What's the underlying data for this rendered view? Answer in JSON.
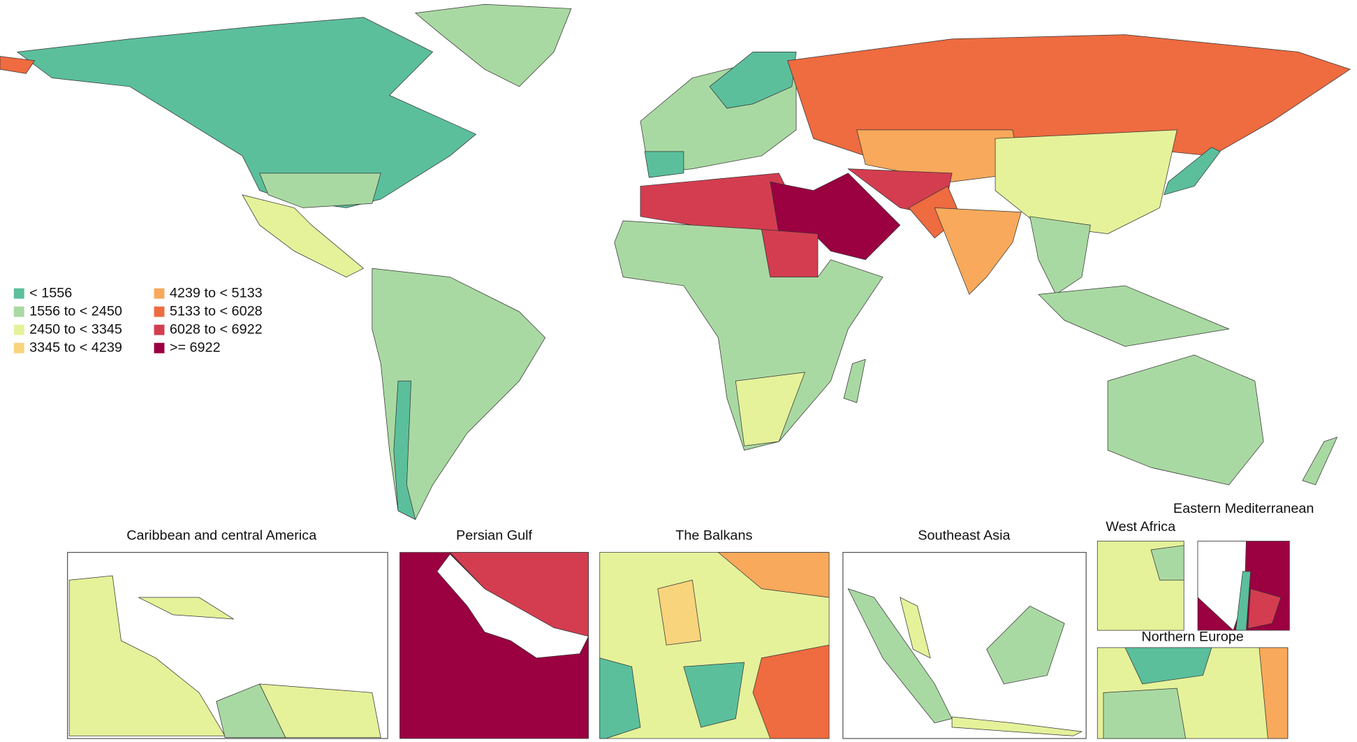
{
  "legend": {
    "items": [
      {
        "label": "< 1556",
        "color": "#5bbf9c"
      },
      {
        "label": "1556 to < 2450",
        "color": "#a9d9a2"
      },
      {
        "label": "2450 to < 3345",
        "color": "#e5f29a"
      },
      {
        "label": "3345 to < 4239",
        "color": "#f8d47c"
      },
      {
        "label": "4239 to < 5133",
        "color": "#f8a95b"
      },
      {
        "label": "5133 to < 6028",
        "color": "#ef6b40"
      },
      {
        "label": "6028 to < 6922",
        "color": "#d43d50"
      },
      {
        "label": ">= 6922",
        "color": "#9b0041"
      }
    ]
  },
  "insets": [
    {
      "title": "Caribbean and central America"
    },
    {
      "title": "Persian Gulf"
    },
    {
      "title": "The Balkans"
    },
    {
      "title": "Southeast Asia"
    },
    {
      "title": "West Africa"
    },
    {
      "title": "Eastern Mediterranean"
    },
    {
      "title": "Northern Europe"
    }
  ]
}
